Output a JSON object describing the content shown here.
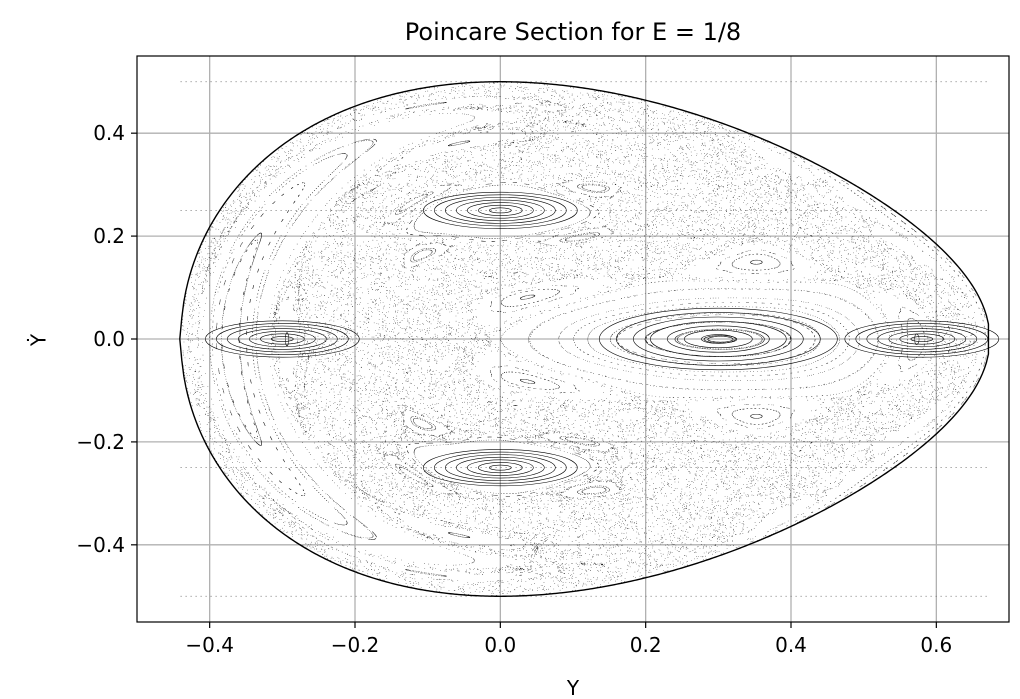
{
  "chart_data": {
    "type": "scatter",
    "title": "Poincare Section for E = 1/8",
    "xlabel": "Y",
    "ylabel": "Ẏ",
    "xlim": [
      -0.5,
      0.7
    ],
    "ylim": [
      -0.55,
      0.55
    ],
    "xticks": [
      -0.4,
      -0.2,
      0.0,
      0.2,
      0.4,
      0.6
    ],
    "xtick_labels": [
      "−0.4",
      "−0.2",
      "0.0",
      "0.2",
      "0.4",
      "0.6"
    ],
    "yticks": [
      -0.4,
      -0.2,
      0.0,
      0.2,
      0.4
    ],
    "ytick_labels": [
      "−0.4",
      "−0.2",
      "0.0",
      "0.2",
      "0.4"
    ],
    "grid": true,
    "point_color": "#000000",
    "boundary_energy": 0.125,
    "islands": [
      {
        "center": [
          0.0,
          0.25
        ],
        "note": "elliptic island"
      },
      {
        "center": [
          0.0,
          -0.25
        ],
        "note": "elliptic island"
      },
      {
        "center": [
          0.3,
          0.0
        ],
        "note": "elliptic island"
      },
      {
        "center": [
          0.58,
          0.0
        ],
        "note": "elliptic island"
      },
      {
        "center": [
          -0.3,
          0.0
        ],
        "note": "elliptic island"
      }
    ],
    "dotted_levels": [
      0.5,
      0.25,
      -0.25,
      -0.5
    ]
  }
}
